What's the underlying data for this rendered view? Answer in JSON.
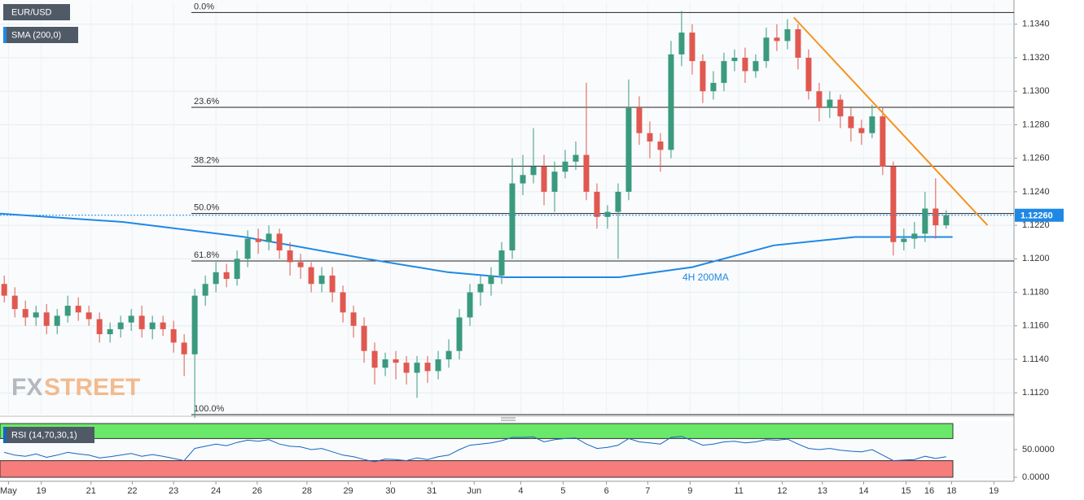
{
  "chart_data": {
    "type": "candlestick",
    "title": "EUR/USD",
    "watermark": [
      "FX",
      "STREET"
    ],
    "xlim": [
      -0.4,
      95.4
    ],
    "xticks": [
      {
        "value": 0.4,
        "label": "May"
      },
      {
        "value": 3.5,
        "label": "19"
      },
      {
        "value": 8.2,
        "label": "21"
      },
      {
        "value": 12.1,
        "label": "22"
      },
      {
        "value": 16,
        "label": "23"
      },
      {
        "value": 20,
        "label": "24"
      },
      {
        "value": 23.9,
        "label": "26"
      },
      {
        "value": 28.6,
        "label": "28"
      },
      {
        "value": 32.5,
        "label": "29"
      },
      {
        "value": 36.5,
        "label": "30"
      },
      {
        "value": 40.4,
        "label": "31"
      },
      {
        "value": 44.4,
        "label": "Jun"
      },
      {
        "value": 48.8,
        "label": "4"
      },
      {
        "value": 52.8,
        "label": "5"
      },
      {
        "value": 56.9,
        "label": "6"
      },
      {
        "value": 60.8,
        "label": "7"
      },
      {
        "value": 64.8,
        "label": "9"
      },
      {
        "value": 69.4,
        "label": "11"
      },
      {
        "value": 73.5,
        "label": "12"
      },
      {
        "value": 77.3,
        "label": "13"
      },
      {
        "value": 81.2,
        "label": "14"
      },
      {
        "value": 85.2,
        "label": "15"
      },
      {
        "value": 87.4,
        "label": "16"
      },
      {
        "value": 89.5,
        "label": "18"
      },
      {
        "value": 93.5,
        "label": "19"
      }
    ],
    "ylim": [
      1.1107,
      1.1353
    ],
    "yticks": [
      {
        "value": 1.112,
        "label": "1.1120"
      },
      {
        "value": 1.114,
        "label": "1.1140"
      },
      {
        "value": 1.116,
        "label": "1.1160"
      },
      {
        "value": 1.118,
        "label": "1.1180"
      },
      {
        "value": 1.12,
        "label": "1.1200"
      },
      {
        "value": 1.122,
        "label": "1.1220"
      },
      {
        "value": 1.124,
        "label": "1.1240"
      },
      {
        "value": 1.126,
        "label": "1.1260"
      },
      {
        "value": 1.128,
        "label": "1.1280"
      },
      {
        "value": 1.13,
        "label": "1.1300"
      },
      {
        "value": 1.132,
        "label": "1.1320"
      },
      {
        "value": 1.134,
        "label": "1.1340"
      }
    ],
    "up_color": "#3a9a7e",
    "down_color": "#e0584f",
    "open": [
      1.1185,
      1.1178,
      1.117,
      1.1165,
      1.1168,
      1.116,
      1.1166,
      1.1172,
      1.1168,
      1.1164,
      1.1155,
      1.1158,
      1.1162,
      1.1166,
      1.1158,
      1.1162,
      1.1158,
      1.115,
      1.1143,
      1.1178,
      1.1185,
      1.1192,
      1.1188,
      1.12,
      1.1212,
      1.121,
      1.1215,
      1.1205,
      1.1198,
      1.1195,
      1.1185,
      1.119,
      1.118,
      1.1168,
      1.116,
      1.1145,
      1.1135,
      1.114,
      1.1138,
      1.1132,
      1.1138,
      1.1133,
      1.114,
      1.1145,
      1.1165,
      1.118,
      1.1185,
      1.119,
      1.1205,
      1.1245,
      1.125,
      1.1255,
      1.124,
      1.1252,
      1.1258,
      1.1262,
      1.124,
      1.1225,
      1.1228,
      1.124,
      1.129,
      1.1275,
      1.127,
      1.1265,
      1.1322,
      1.1335,
      1.1318,
      1.13,
      1.1305,
      1.1318,
      1.132,
      1.1312,
      1.1318,
      1.1332,
      1.133,
      1.1337,
      1.132,
      1.13,
      1.129,
      1.1295,
      1.1285,
      1.1278,
      1.1275,
      1.1285,
      1.1255,
      1.121,
      1.1212,
      1.1215,
      1.123,
      1.122
    ],
    "high": [
      1.119,
      1.1183,
      1.1175,
      1.1172,
      1.1173,
      1.117,
      1.1178,
      1.1177,
      1.1172,
      1.1168,
      1.1162,
      1.1166,
      1.117,
      1.1172,
      1.1166,
      1.1166,
      1.1163,
      1.1155,
      1.1182,
      1.119,
      1.1198,
      1.1197,
      1.1205,
      1.1217,
      1.1218,
      1.122,
      1.1218,
      1.121,
      1.1203,
      1.1198,
      1.1195,
      1.1195,
      1.1184,
      1.1172,
      1.1165,
      1.115,
      1.1144,
      1.1145,
      1.1142,
      1.1142,
      1.1142,
      1.1145,
      1.1152,
      1.117,
      1.1185,
      1.119,
      1.1195,
      1.121,
      1.126,
      1.1262,
      1.1278,
      1.1262,
      1.1258,
      1.1265,
      1.127,
      1.1305,
      1.1245,
      1.1232,
      1.1245,
      1.1307,
      1.1297,
      1.1282,
      1.1275,
      1.133,
      1.1348,
      1.134,
      1.1322,
      1.1312,
      1.1323,
      1.1325,
      1.1326,
      1.1322,
      1.1338,
      1.134,
      1.1343,
      1.134,
      1.1325,
      1.1305,
      1.13,
      1.1298,
      1.129,
      1.1283,
      1.1292,
      1.129,
      1.1258,
      1.1218,
      1.1222,
      1.124,
      1.1248,
      1.1229
    ],
    "low": [
      1.1174,
      1.1165,
      1.116,
      1.116,
      1.1155,
      1.1155,
      1.1162,
      1.1163,
      1.116,
      1.115,
      1.115,
      1.1153,
      1.1157,
      1.1153,
      1.1152,
      1.1154,
      1.1144,
      1.113,
      1.1105,
      1.1172,
      1.118,
      1.1183,
      1.1184,
      1.1195,
      1.1203,
      1.1205,
      1.12,
      1.119,
      1.1188,
      1.118,
      1.118,
      1.1174,
      1.1162,
      1.1153,
      1.1138,
      1.1125,
      1.113,
      1.1128,
      1.1125,
      1.1117,
      1.1126,
      1.1128,
      1.1135,
      1.114,
      1.116,
      1.1172,
      1.1178,
      1.1185,
      1.12,
      1.1238,
      1.1245,
      1.1232,
      1.1228,
      1.1248,
      1.1253,
      1.1235,
      1.1218,
      1.1218,
      1.12,
      1.1235,
      1.1268,
      1.126,
      1.1252,
      1.126,
      1.1315,
      1.131,
      1.1293,
      1.1295,
      1.13,
      1.1312,
      1.1305,
      1.1308,
      1.1314,
      1.1324,
      1.1325,
      1.1313,
      1.1295,
      1.1282,
      1.1284,
      1.1278,
      1.127,
      1.1268,
      1.1272,
      1.125,
      1.1202,
      1.1205,
      1.1206,
      1.121,
      1.1212,
      1.1218
    ],
    "close": [
      1.1178,
      1.117,
      1.1165,
      1.1168,
      1.116,
      1.1166,
      1.1172,
      1.1168,
      1.1164,
      1.1155,
      1.1158,
      1.1162,
      1.1166,
      1.1158,
      1.1162,
      1.1158,
      1.115,
      1.1143,
      1.1178,
      1.1185,
      1.1192,
      1.1188,
      1.12,
      1.1212,
      1.121,
      1.1215,
      1.1205,
      1.1198,
      1.1195,
      1.1185,
      1.119,
      1.118,
      1.1168,
      1.116,
      1.1145,
      1.1135,
      1.114,
      1.1138,
      1.1132,
      1.1138,
      1.1133,
      1.114,
      1.1145,
      1.1165,
      1.118,
      1.1185,
      1.119,
      1.1205,
      1.1245,
      1.125,
      1.1255,
      1.124,
      1.1252,
      1.1258,
      1.1262,
      1.124,
      1.1225,
      1.1228,
      1.124,
      1.129,
      1.1275,
      1.127,
      1.1265,
      1.1322,
      1.1335,
      1.1318,
      1.13,
      1.1305,
      1.1318,
      1.132,
      1.1312,
      1.1318,
      1.1332,
      1.133,
      1.1337,
      1.132,
      1.13,
      1.129,
      1.1295,
      1.1285,
      1.1278,
      1.1275,
      1.1285,
      1.1255,
      1.121,
      1.1212,
      1.1215,
      1.123,
      1.122,
      1.1226
    ],
    "sma": {
      "name": "SMA (200,0)",
      "annotation": "4H 200MA",
      "color": "#1e88e5",
      "x": [
        -0.4,
        11.2,
        22.7,
        34.2,
        41.9,
        47.3,
        53.5,
        58.1,
        65,
        72.7,
        80.4,
        89.6
      ],
      "values": [
        1.1227,
        1.1222,
        1.1213,
        1.12,
        1.1192,
        1.1189,
        1.1189,
        1.1189,
        1.1195,
        1.1208,
        1.1213,
        1.1213
      ]
    },
    "trendline": {
      "color": "#f7931e",
      "x": [
        74.6,
        92.9
      ],
      "values": [
        1.1344,
        1.122
      ]
    },
    "fibonacci": [
      {
        "level": "0.0%",
        "price": 1.1347
      },
      {
        "level": "23.6%",
        "price": 1.12904
      },
      {
        "level": "38.2%",
        "price": 1.12553
      },
      {
        "level": "50.0%",
        "price": 1.1227
      },
      {
        "level": "61.8%",
        "price": 1.11987
      },
      {
        "level": "100.0%",
        "price": 1.1107
      }
    ],
    "last_price": {
      "value": 1.1226,
      "label": "1.12260"
    },
    "rsi": {
      "name": "RSI (14,70,30,1)",
      "color": "#1565c0",
      "bands": [
        30,
        70
      ],
      "ylim": [
        0,
        100
      ],
      "yticks": [
        {
          "value": 0,
          "label": "0.0000"
        },
        {
          "value": 50,
          "label": "50.0000"
        }
      ],
      "values": [
        45,
        40,
        38,
        42,
        36,
        40,
        45,
        42,
        40,
        35,
        37,
        40,
        43,
        38,
        41,
        38,
        34,
        30,
        52,
        56,
        60,
        57,
        63,
        67,
        65,
        68,
        60,
        56,
        55,
        50,
        52,
        46,
        40,
        37,
        32,
        28,
        33,
        32,
        30,
        35,
        32,
        37,
        40,
        50,
        58,
        60,
        62,
        66,
        72,
        72,
        73,
        64,
        68,
        70,
        71,
        60,
        52,
        54,
        58,
        70,
        64,
        62,
        60,
        72,
        74,
        66,
        58,
        60,
        64,
        65,
        62,
        64,
        68,
        67,
        69,
        60,
        52,
        50,
        52,
        49,
        47,
        46,
        50,
        40,
        30,
        31,
        32,
        38,
        34,
        37
      ]
    }
  }
}
